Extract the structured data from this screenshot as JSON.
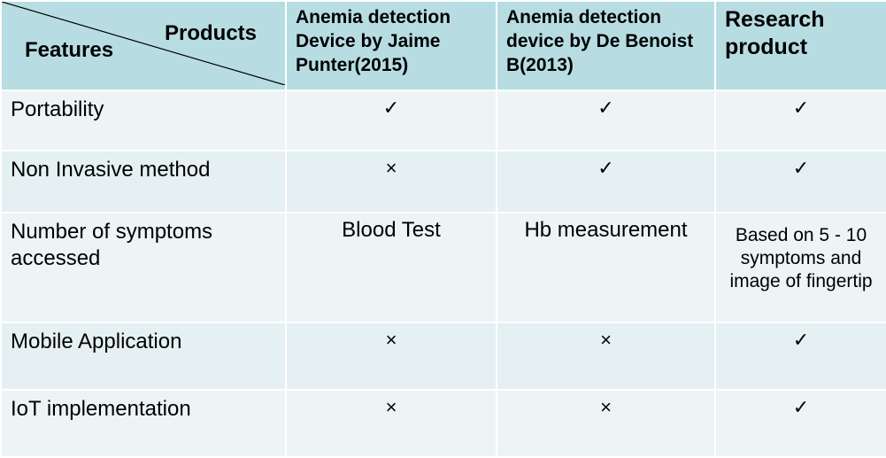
{
  "header": {
    "corner_top": "Products",
    "corner_bottom": "Features",
    "columns": [
      "Anemia detection Device by Jaime Punter(2015)",
      "Anemia detection device by De Benoist B(2013)",
      "Research product"
    ]
  },
  "rows": [
    {
      "feature": "Portability",
      "c1": "✓",
      "c2": "✓",
      "c3": "✓"
    },
    {
      "feature": "Non Invasive method",
      "c1": "×",
      "c2": "✓",
      "c3": "✓"
    },
    {
      "feature": "Number of symptoms accessed",
      "c1": "Blood Test",
      "c2": "Hb measurement",
      "c3": "Based on 5 - 10 symptoms and image of fingertip"
    },
    {
      "feature": "Mobile Application",
      "c1": "×",
      "c2": "×",
      "c3": "✓"
    },
    {
      "feature": "IoT implementation",
      "c1": "×",
      "c2": "×",
      "c3": "✓"
    }
  ]
}
